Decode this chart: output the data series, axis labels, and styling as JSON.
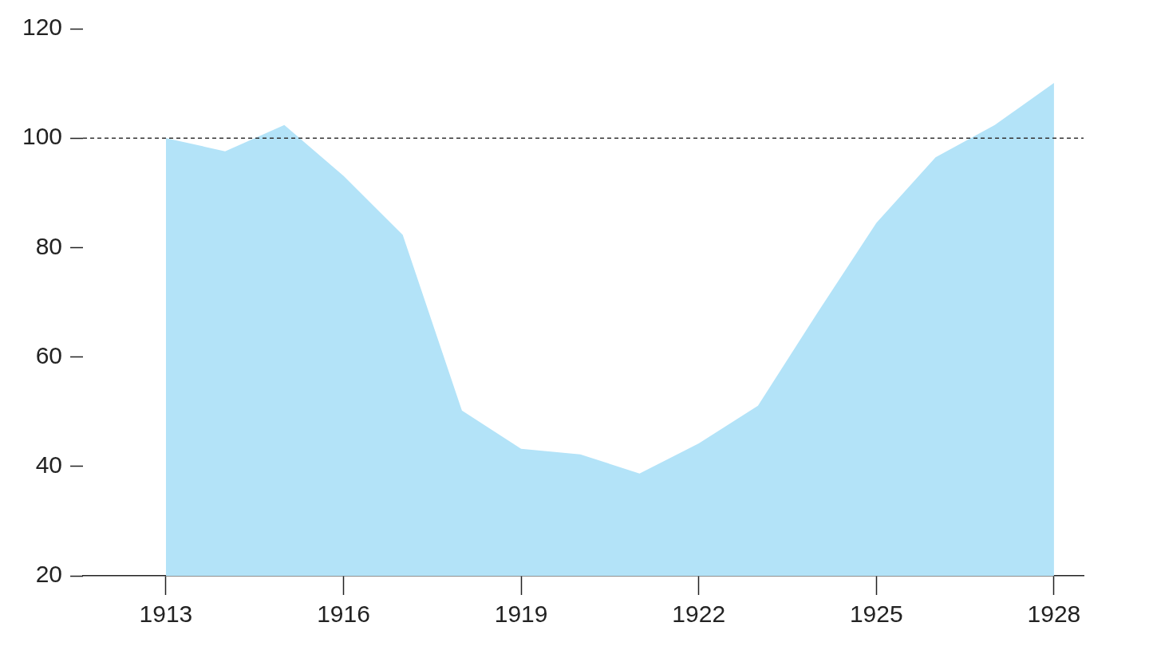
{
  "chart_data": {
    "type": "area",
    "x": [
      1913,
      1914,
      1915,
      1916,
      1917,
      1918,
      1919,
      1920,
      1921,
      1922,
      1923,
      1924,
      1925,
      1926,
      1927,
      1928
    ],
    "series": [
      {
        "color": "#b3e3f8",
        "values": [
          100,
          97.6,
          102.4,
          93.1,
          82.3,
          50.2,
          43.2,
          42.2,
          38.7,
          44.2,
          51.1,
          68,
          84.5,
          96.5,
          102.4,
          110.1
        ]
      }
    ],
    "xlim": [
      1911.6,
      1928.5
    ],
    "xticks": [
      1913,
      1916,
      1919,
      1922,
      1925,
      1928
    ],
    "ylim": [
      20,
      120
    ],
    "yticks": [
      20,
      40,
      60,
      80,
      100,
      120
    ],
    "ref_lines": [
      {
        "axis": "y",
        "value": 100,
        "line_style": "dashed",
        "color": "#333333"
      }
    ],
    "grid": false,
    "legend": false
  }
}
